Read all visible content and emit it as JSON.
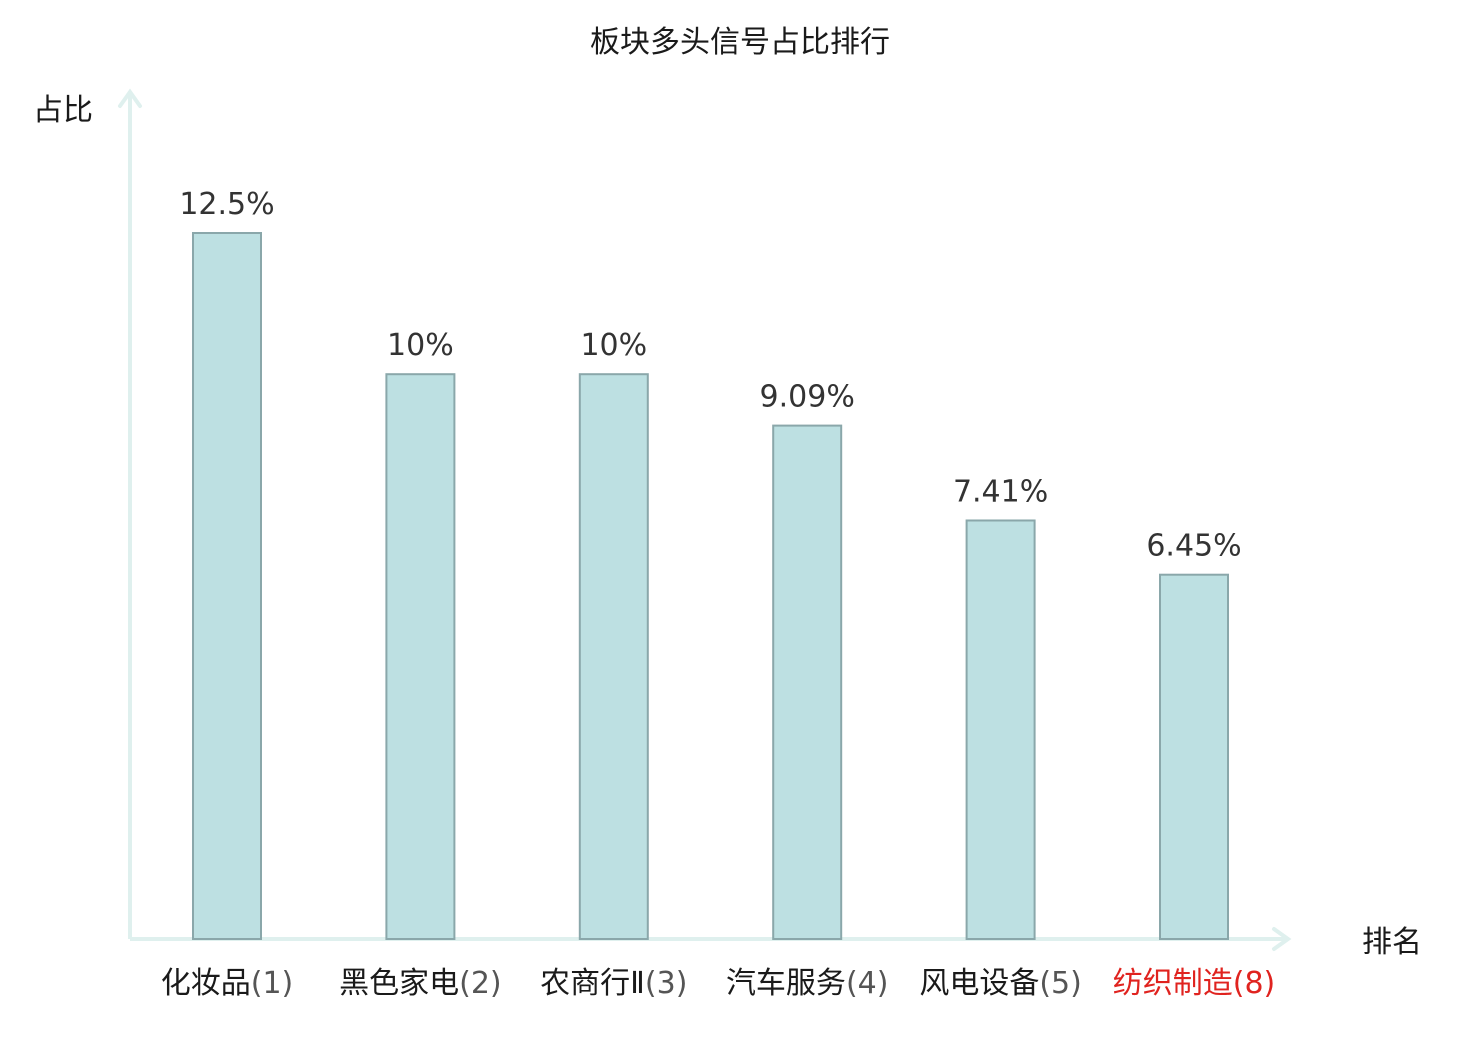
{
  "chart_data": {
    "type": "bar",
    "title": "板块多头信号占比排行",
    "ylabel": "占比",
    "xlabel": "排名",
    "categories": [
      {
        "name": "化妆品",
        "rank": "(1)",
        "highlight": false
      },
      {
        "name": "黑色家电",
        "rank": "(2)",
        "highlight": false
      },
      {
        "name": "农商行Ⅱ",
        "rank": "(3)",
        "highlight": false
      },
      {
        "name": "汽车服务",
        "rank": "(4)",
        "highlight": false
      },
      {
        "name": "风电设备",
        "rank": "(5)",
        "highlight": false
      },
      {
        "name": "纺织制造",
        "rank": "(8)",
        "highlight": true
      }
    ],
    "values": [
      12.5,
      10,
      10,
      9.09,
      7.41,
      6.45
    ],
    "value_labels": [
      "12.5%",
      "10%",
      "10%",
      "9.09%",
      "7.41%",
      "6.45%"
    ],
    "ylim": [
      0,
      12.5
    ],
    "grid": false,
    "legend": "none"
  },
  "colors": {
    "bar_fill": "#bde0e2",
    "bar_stroke": "#8aa7aa",
    "axis": "#dff0ee",
    "text": "#1a1a1a",
    "rank_text": "#555555",
    "highlight": "#e0231f"
  }
}
